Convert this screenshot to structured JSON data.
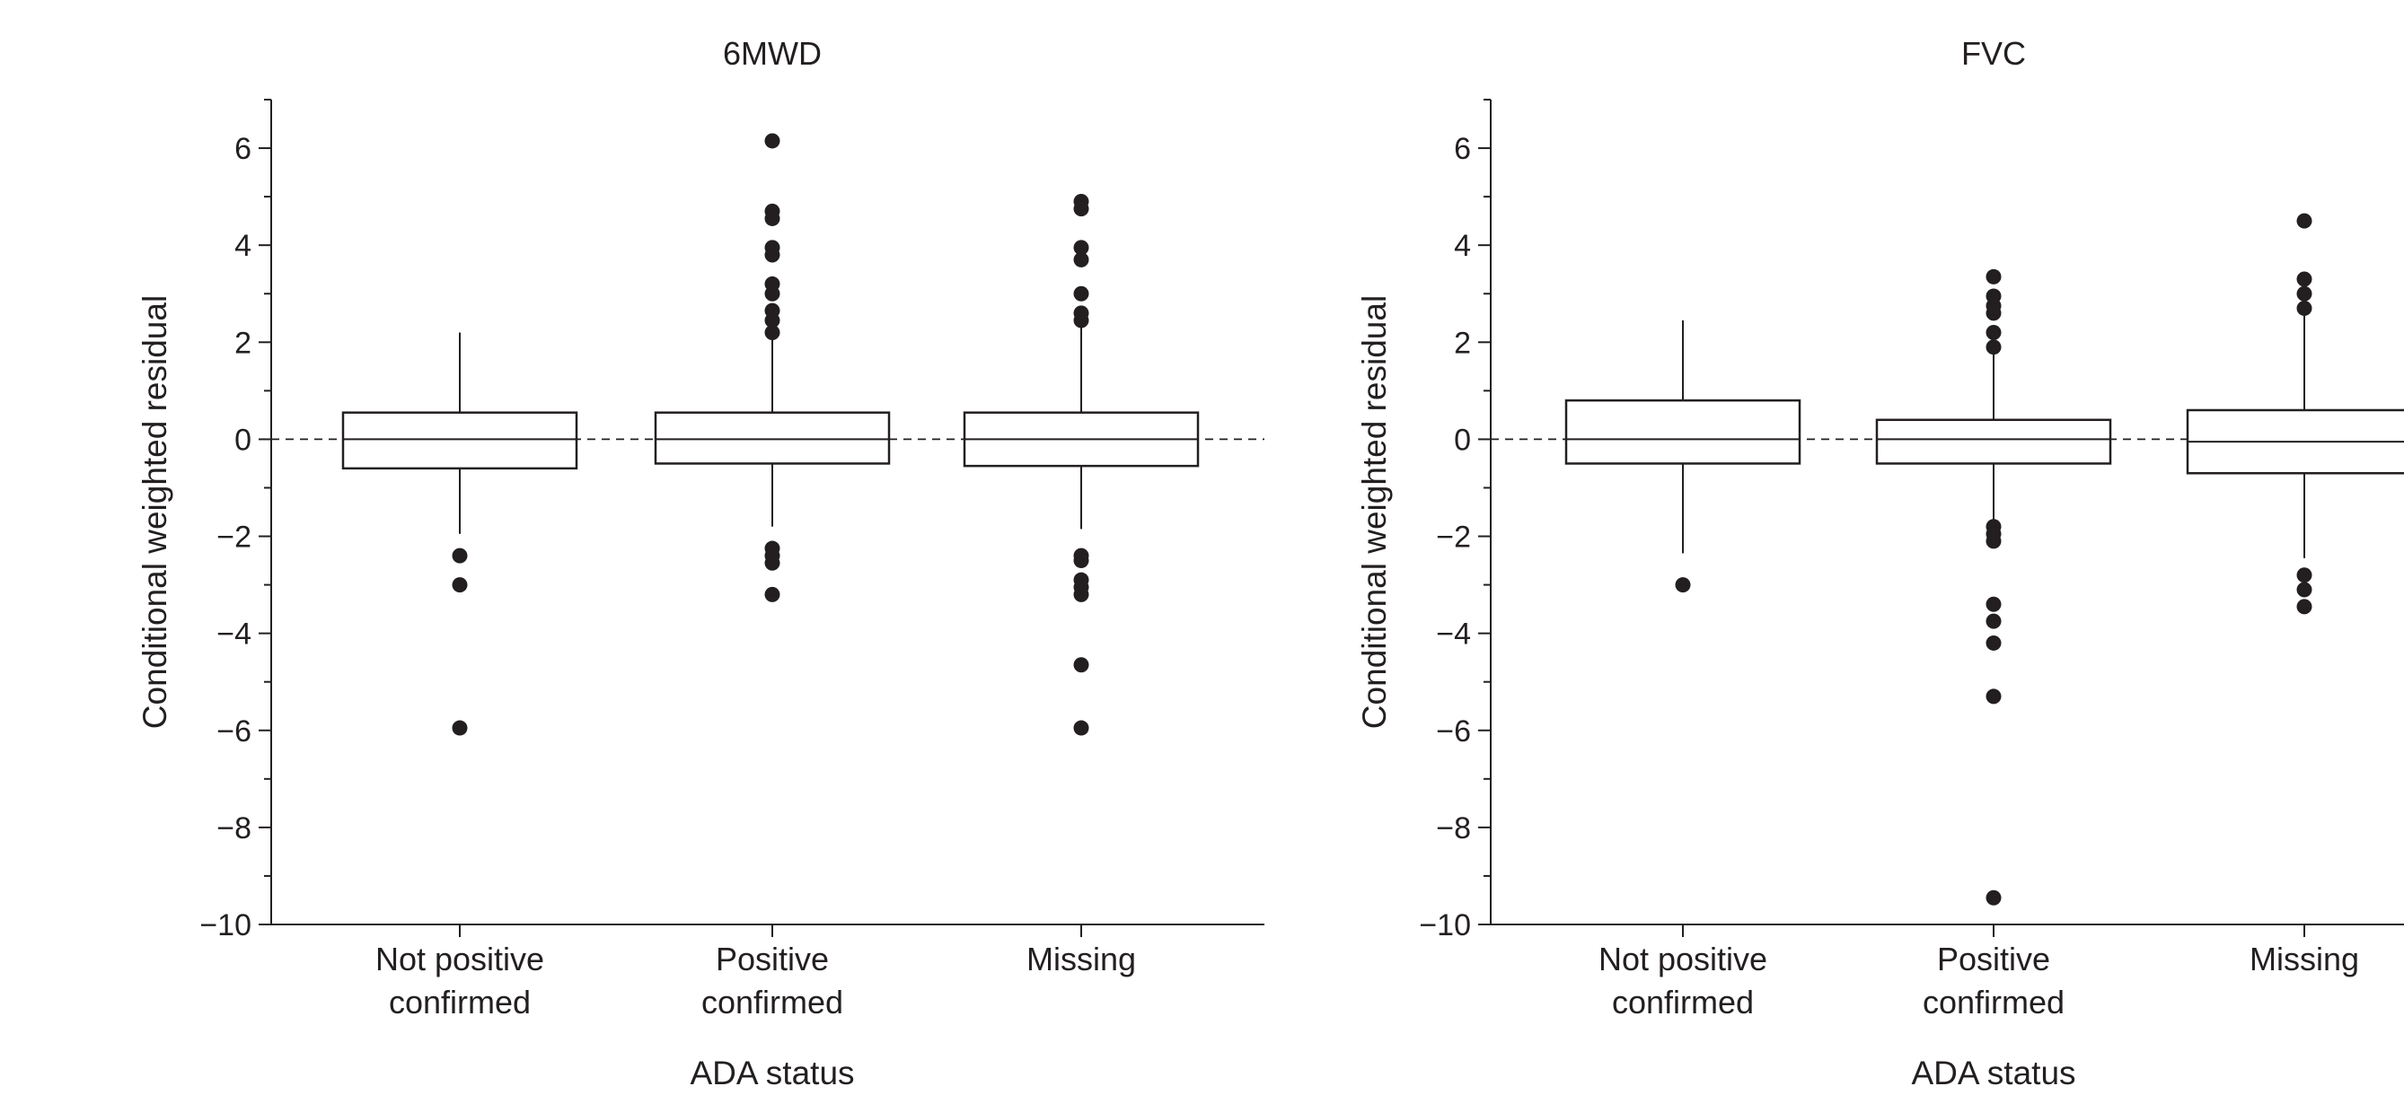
{
  "chart_data": [
    {
      "type": "box",
      "title": "6MWD",
      "xlabel": "ADA status",
      "ylabel": "Conditional weighted residual",
      "ylim": [
        -10,
        7
      ],
      "yticks": [
        {
          "value": 6,
          "label": "6"
        },
        {
          "value": 4,
          "label": "4"
        },
        {
          "value": 2,
          "label": "2"
        },
        {
          "value": 0,
          "label": "0"
        },
        {
          "value": -2,
          "label": "−2"
        },
        {
          "value": -4,
          "label": "−4"
        },
        {
          "value": -6,
          "label": "−6"
        },
        {
          "value": -8,
          "label": "−8"
        },
        {
          "value": -10,
          "label": "−10"
        }
      ],
      "reference_line": 0,
      "categories": [
        {
          "label": [
            "Not positive",
            "confirmed"
          ],
          "whisker_low": -1.95,
          "q1": -0.6,
          "median": 0.0,
          "q3": 0.55,
          "whisker_high": 2.2,
          "outliers": [
            -2.4,
            -3.0,
            -5.95
          ]
        },
        {
          "label": [
            "Positive",
            "confirmed"
          ],
          "whisker_low": -1.8,
          "q1": -0.5,
          "median": 0.0,
          "q3": 0.55,
          "whisker_high": 2.15,
          "outliers": [
            6.15,
            4.7,
            4.55,
            3.95,
            3.8,
            3.2,
            3.0,
            2.65,
            2.45,
            2.2,
            -2.25,
            -2.4,
            -2.55,
            -3.2
          ]
        },
        {
          "label": [
            "Missing"
          ],
          "whisker_low": -1.85,
          "q1": -0.55,
          "median": 0.0,
          "q3": 0.55,
          "whisker_high": 2.4,
          "outliers": [
            4.9,
            4.75,
            3.95,
            3.7,
            3.0,
            2.6,
            2.45,
            -2.4,
            -2.5,
            -2.9,
            -3.05,
            -3.2,
            -4.65,
            -5.95
          ]
        }
      ]
    },
    {
      "type": "box",
      "title": "FVC",
      "xlabel": "ADA status",
      "ylabel": "Conditional weighted residual",
      "ylim": [
        -10,
        7
      ],
      "yticks": [
        {
          "value": 6,
          "label": "6"
        },
        {
          "value": 4,
          "label": "4"
        },
        {
          "value": 2,
          "label": "2"
        },
        {
          "value": 0,
          "label": "0"
        },
        {
          "value": -2,
          "label": "−2"
        },
        {
          "value": -4,
          "label": "−4"
        },
        {
          "value": -6,
          "label": "−6"
        },
        {
          "value": -8,
          "label": "−8"
        },
        {
          "value": -10,
          "label": "−10"
        }
      ],
      "reference_line": 0,
      "categories": [
        {
          "label": [
            "Not positive",
            "confirmed"
          ],
          "whisker_low": -2.35,
          "q1": -0.5,
          "median": 0.0,
          "q3": 0.8,
          "whisker_high": 2.45,
          "outliers": [
            -3.0
          ]
        },
        {
          "label": [
            "Positive",
            "confirmed"
          ],
          "whisker_low": -1.7,
          "q1": -0.5,
          "median": 0.0,
          "q3": 0.4,
          "whisker_high": 1.85,
          "outliers": [
            3.35,
            2.95,
            2.75,
            2.6,
            2.2,
            1.9,
            -1.8,
            -1.95,
            -2.1,
            -3.4,
            -3.75,
            -4.2,
            -5.3,
            -9.45
          ]
        },
        {
          "label": [
            "Missing"
          ],
          "whisker_low": -2.45,
          "q1": -0.7,
          "median": -0.05,
          "q3": 0.6,
          "whisker_high": 2.6,
          "outliers": [
            4.5,
            3.3,
            3.0,
            2.7,
            -2.8,
            -3.1,
            -3.45
          ]
        }
      ]
    }
  ]
}
